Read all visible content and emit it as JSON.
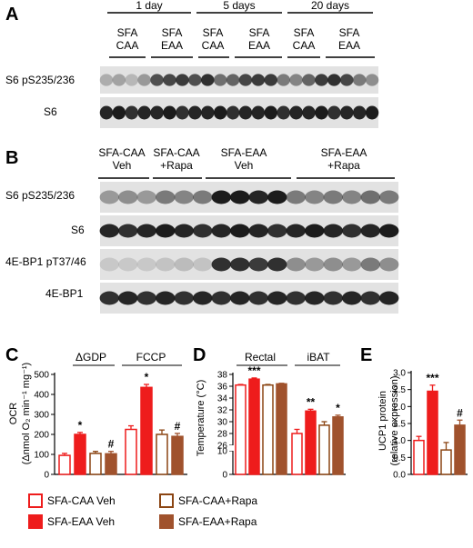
{
  "colors": {
    "caa_veh": "#ffffff",
    "eaa_veh": "#ee1c1c",
    "caa_rapa": "#ffffff",
    "eaa_rapa": "#a0522d",
    "caa_veh_edge": "#ee1c1c",
    "caa_rapa_edge": "#8b4513",
    "blot_bg": "#e2e2e2"
  },
  "panel_a": {
    "letter": "A",
    "timepoints": [
      "1 day",
      "5 days",
      "20 days"
    ],
    "groups": [
      [
        "SFA",
        "CAA"
      ],
      [
        "SFA",
        "EAA"
      ],
      [
        "SFA",
        "CAA"
      ],
      [
        "SFA",
        "EAA"
      ],
      [
        "SFA",
        "CAA"
      ],
      [
        "SFA",
        "EAA"
      ]
    ],
    "blot_labels": [
      "S6 pS235/236",
      "S6"
    ]
  },
  "panel_b": {
    "letter": "B",
    "groups": [
      [
        "SFA-CAA",
        "Veh"
      ],
      [
        "SFA-CAA",
        "+Rapa"
      ],
      [
        "SFA-EAA",
        "Veh"
      ],
      [
        "SFA-EAA",
        "+Rapa"
      ]
    ],
    "blot_labels": [
      "S6 pS235/236",
      "S6",
      "4E-BP1 pT37/46",
      "4E-BP1"
    ]
  },
  "legend": [
    {
      "label": "SFA-CAA Veh",
      "color_key": "caa_veh",
      "edge_key": "caa_veh_edge"
    },
    {
      "label": "SFA-EAA Veh",
      "color_key": "eaa_veh",
      "edge_key": "eaa_veh"
    },
    {
      "label": "SFA-CAA+Rapa",
      "color_key": "caa_rapa",
      "edge_key": "caa_rapa_edge"
    },
    {
      "label": "SFA-EAA+Rapa",
      "color_key": "eaa_rapa",
      "edge_key": "eaa_rapa"
    }
  ],
  "chart_data": [
    {
      "panel": "C",
      "type": "bar",
      "ylabel": "OCR",
      "ylabel_sub": "(Δnmol O₂ min⁻¹ mg⁻¹)",
      "ylim": [
        0,
        500
      ],
      "yticks": [
        0,
        100,
        200,
        300,
        400,
        500
      ],
      "groups": [
        "ΔGDP",
        "FCCP"
      ],
      "series": [
        {
          "color_key": "caa_veh",
          "values": [
            95,
            225
          ],
          "errors": [
            10,
            18
          ]
        },
        {
          "color_key": "eaa_veh",
          "values": [
            200,
            435
          ],
          "errors": [
            10,
            15
          ]
        },
        {
          "color_key": "caa_rapa",
          "values": [
            105,
            200
          ],
          "errors": [
            10,
            22
          ]
        },
        {
          "color_key": "eaa_rapa",
          "values": [
            103,
            190
          ],
          "errors": [
            12,
            15
          ]
        }
      ],
      "annotations": [
        {
          "group": 0,
          "series": 1,
          "text": "*"
        },
        {
          "group": 0,
          "series": 3,
          "text": "#"
        },
        {
          "group": 1,
          "series": 1,
          "text": "*"
        },
        {
          "group": 1,
          "series": 3,
          "text": "#"
        }
      ]
    },
    {
      "panel": "D",
      "type": "bar",
      "ylabel": "Temperature (°C)",
      "axis_break": [
        10,
        26
      ],
      "ylim": [
        0,
        38
      ],
      "yticks": [
        0,
        10,
        26,
        28,
        30,
        32,
        34,
        36,
        38
      ],
      "groups": [
        "Rectal",
        "iBAT"
      ],
      "series": [
        {
          "color_key": "caa_veh",
          "values": [
            36.2,
            28.0
          ],
          "errors": [
            0.1,
            0.7
          ]
        },
        {
          "color_key": "eaa_veh",
          "values": [
            37.2,
            31.8
          ],
          "errors": [
            0.2,
            0.3
          ]
        },
        {
          "color_key": "caa_rapa",
          "values": [
            36.2,
            29.4
          ],
          "errors": [
            0.1,
            0.6
          ]
        },
        {
          "color_key": "eaa_rapa",
          "values": [
            36.4,
            30.8
          ],
          "errors": [
            0.1,
            0.3
          ]
        }
      ],
      "annotations": [
        {
          "group": 0,
          "series": 1,
          "text": "***"
        },
        {
          "group": 1,
          "series": 1,
          "text": "**"
        },
        {
          "group": 1,
          "series": 3,
          "text": "*"
        }
      ]
    },
    {
      "panel": "E",
      "type": "bar",
      "ylabel": "UCP1 protein",
      "ylabel_sub": "(relative expression)",
      "ylim": [
        0,
        3.0
      ],
      "yticks": [
        "0.0",
        "0.5",
        "1.0",
        "1.5",
        "2.0",
        "2.5",
        "3.0"
      ],
      "groups": [
        ""
      ],
      "series": [
        {
          "color_key": "caa_veh",
          "values": [
            1.0
          ],
          "errors": [
            0.12
          ]
        },
        {
          "color_key": "eaa_veh",
          "values": [
            2.45
          ],
          "errors": [
            0.18
          ]
        },
        {
          "color_key": "caa_rapa",
          "values": [
            0.72
          ],
          "errors": [
            0.22
          ]
        },
        {
          "color_key": "eaa_rapa",
          "values": [
            1.45
          ],
          "errors": [
            0.15
          ]
        }
      ],
      "annotations": [
        {
          "group": 0,
          "series": 1,
          "text": "***"
        },
        {
          "group": 0,
          "series": 3,
          "text": "#"
        }
      ]
    }
  ]
}
